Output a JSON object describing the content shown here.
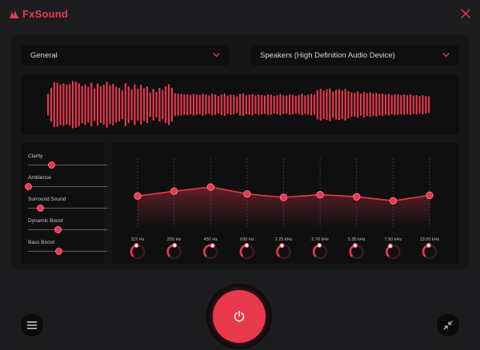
{
  "app": {
    "title": "FxSound",
    "accent": "#e8394d"
  },
  "header": {
    "close_icon": "close-icon"
  },
  "preset": {
    "selected": "General"
  },
  "device": {
    "selected": "Speakers (High Definition Audio Device)"
  },
  "visualizer": {
    "levels": [
      0.42,
      0.66,
      0.88,
      0.86,
      0.8,
      0.83,
      0.78,
      0.81,
      0.92,
      0.9,
      0.84,
      0.73,
      0.79,
      0.7,
      0.86,
      0.64,
      0.82,
      0.72,
      0.78,
      0.9,
      0.76,
      0.81,
      0.7,
      0.66,
      0.57,
      0.84,
      0.72,
      0.6,
      0.8,
      0.62,
      0.78,
      0.64,
      0.72,
      0.48,
      0.62,
      0.5,
      0.66,
      0.58,
      0.72,
      0.8,
      0.66,
      0.45,
      0.43,
      0.42,
      0.4,
      0.41,
      0.39,
      0.42,
      0.4,
      0.38,
      0.43,
      0.39,
      0.36,
      0.42,
      0.4,
      0.34,
      0.4,
      0.44,
      0.36,
      0.4,
      0.38,
      0.33,
      0.42,
      0.44,
      0.37,
      0.39,
      0.41,
      0.36,
      0.4,
      0.38,
      0.36,
      0.4,
      0.39,
      0.34,
      0.38,
      0.42,
      0.37,
      0.36,
      0.4,
      0.38,
      0.34,
      0.38,
      0.42,
      0.36,
      0.39,
      0.42,
      0.39,
      0.58,
      0.62,
      0.56,
      0.6,
      0.64,
      0.52,
      0.58,
      0.6,
      0.56,
      0.62,
      0.53,
      0.48,
      0.47,
      0.52,
      0.43,
      0.5,
      0.45,
      0.48,
      0.44,
      0.46,
      0.42,
      0.44,
      0.4,
      0.42,
      0.38,
      0.41,
      0.4,
      0.38,
      0.4,
      0.37,
      0.4,
      0.36,
      0.38,
      0.34,
      0.37,
      0.34,
      0.33
    ]
  },
  "effects": [
    {
      "label": "Clarity",
      "value": 0.3
    },
    {
      "label": "Ambience",
      "value": 0.0
    },
    {
      "label": "Surround Sound",
      "value": 0.16
    },
    {
      "label": "Dynamic Boost",
      "value": 0.38
    },
    {
      "label": "Bass Boost",
      "value": 0.39
    }
  ],
  "equalizer": {
    "bands": [
      "115 Hz",
      "250 Hz",
      "450 Hz",
      "630 Hz",
      "1.25 kHz",
      "2.70 kHz",
      "5.30 kHz",
      "7.50 kHz",
      "13.00 kHz"
    ],
    "levels": [
      0.45,
      0.52,
      0.58,
      0.48,
      0.43,
      0.47,
      0.44,
      0.38,
      0.46
    ]
  },
  "footer": {
    "menu_icon": "menu-icon",
    "power_icon": "power-icon",
    "shrink_icon": "shrink-icon"
  }
}
